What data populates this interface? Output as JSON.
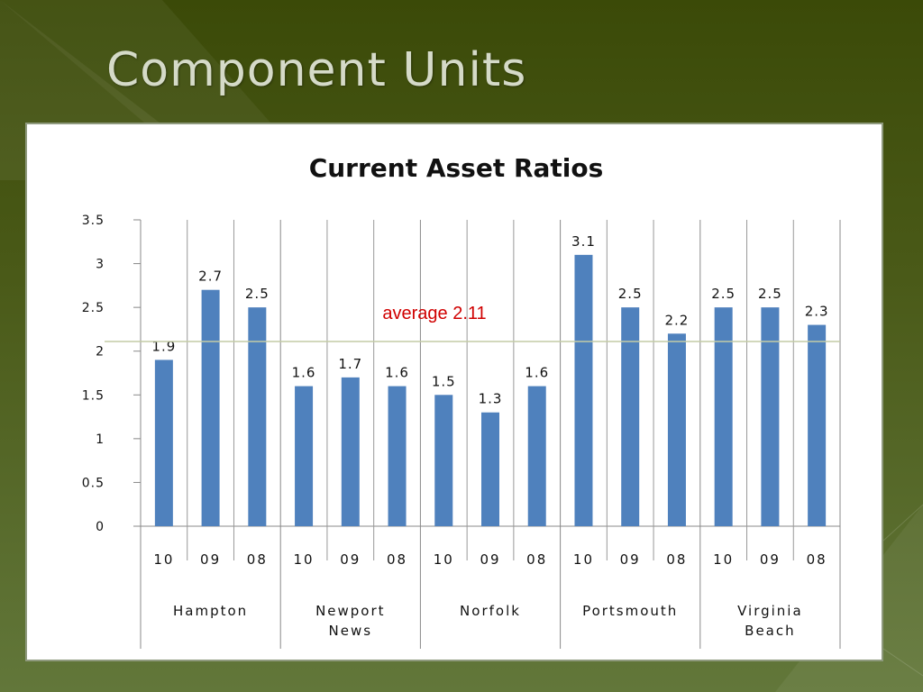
{
  "slide": {
    "title": "Component Units"
  },
  "chart_data": {
    "type": "bar",
    "title": "Current Asset Ratios",
    "ylim": [
      0,
      3.5
    ],
    "yticks": [
      "0",
      "0.5",
      "1",
      "1.5",
      "2",
      "2.5",
      "3",
      "3.5"
    ],
    "groups": [
      {
        "name": "Hampton",
        "lines": [
          "Hampton"
        ],
        "categories": [
          "10",
          "09",
          "08"
        ],
        "values": [
          1.9,
          2.7,
          2.5
        ]
      },
      {
        "name": "Newport News",
        "lines": [
          "Newport",
          "News"
        ],
        "categories": [
          "10",
          "09",
          "08"
        ],
        "values": [
          1.6,
          1.7,
          1.6
        ]
      },
      {
        "name": "Norfolk",
        "lines": [
          "Norfolk"
        ],
        "categories": [
          "10",
          "09",
          "08"
        ],
        "values": [
          1.5,
          1.3,
          1.6
        ]
      },
      {
        "name": "Portsmouth",
        "lines": [
          "Portsmouth"
        ],
        "categories": [
          "10",
          "09",
          "08"
        ],
        "values": [
          3.1,
          2.5,
          2.2
        ]
      },
      {
        "name": "Virginia Beach",
        "lines": [
          "Virginia",
          "Beach"
        ],
        "categories": [
          "10",
          "09",
          "08"
        ],
        "values": [
          2.5,
          2.5,
          2.3
        ]
      }
    ],
    "average": {
      "value": 2.11,
      "label": "average 2.11"
    },
    "bar_color": "#4f81bd",
    "average_line_color": "#c3cca6",
    "average_label_color": "#d00000",
    "grid": false,
    "category_separators": true
  }
}
